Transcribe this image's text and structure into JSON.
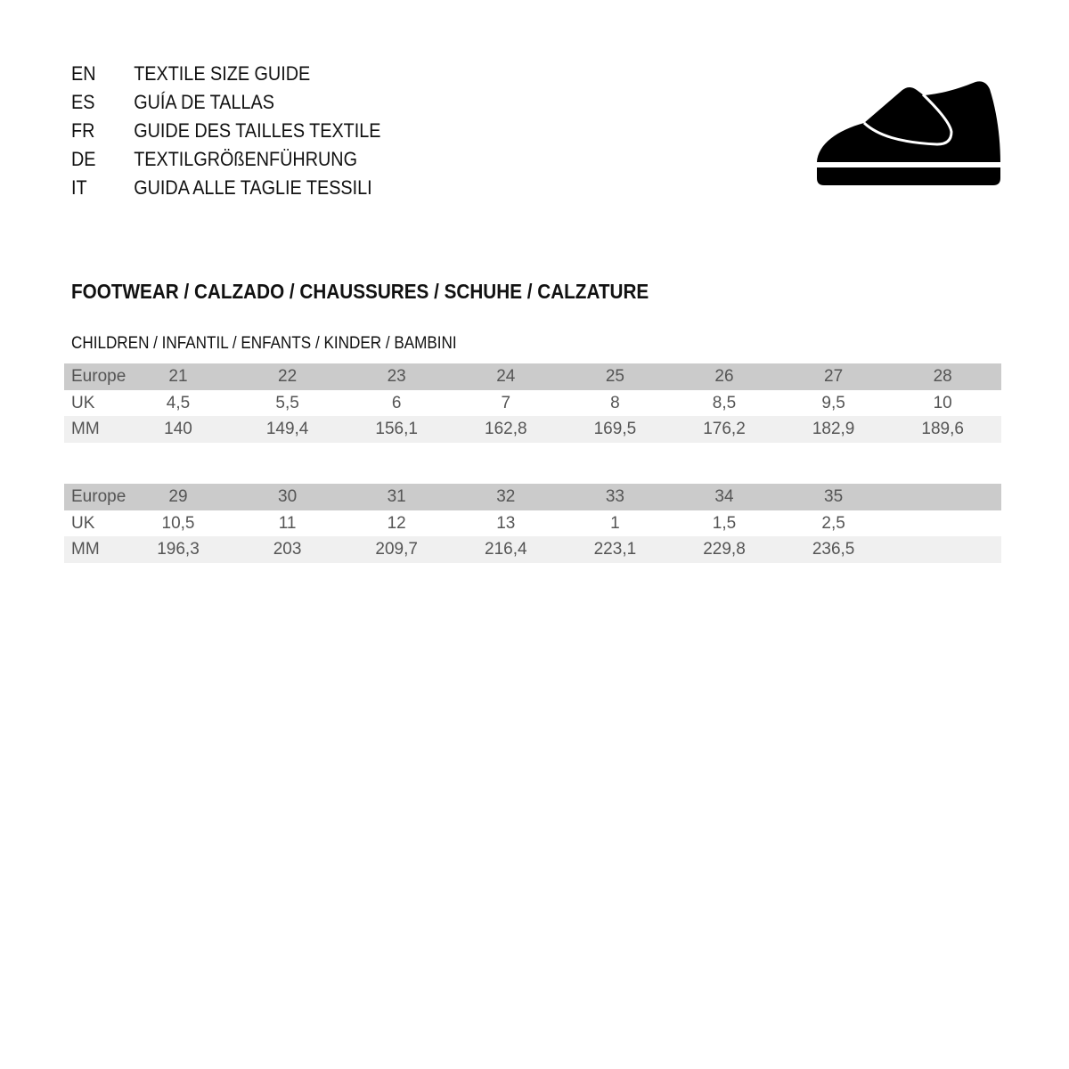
{
  "titles": [
    {
      "code": "EN",
      "text": "TEXTILE SIZE GUIDE"
    },
    {
      "code": "ES",
      "text": "GUÍA DE TALLAS"
    },
    {
      "code": "FR",
      "text": "GUIDE DES TAILLES TEXTILE"
    },
    {
      "code": "DE",
      "text": "TEXTILGRÖßENFÜHRUNG"
    },
    {
      "code": "IT",
      "text": "GUIDA ALLE TAGLIE TESSILI"
    }
  ],
  "icon": "shoe-icon",
  "section_title": "FOOTWEAR / CALZADO / CHAUSSURES / SCHUHE / CALZATURE",
  "subsection_title": "CHILDREN / INFANTIL / ENFANTS / KINDER / BAMBINI",
  "tables": [
    {
      "rows": [
        {
          "label": "Europe",
          "values": [
            "21",
            "22",
            "23",
            "24",
            "25",
            "26",
            "27",
            "28"
          ]
        },
        {
          "label": "UK",
          "values": [
            "4,5",
            "5,5",
            "6",
            "7",
            "8",
            "8,5",
            "9,5",
            "10"
          ]
        },
        {
          "label": "MM",
          "values": [
            "140",
            "149,4",
            "156,1",
            "162,8",
            "169,5",
            "176,2",
            "182,9",
            "189,6"
          ]
        }
      ]
    },
    {
      "rows": [
        {
          "label": "Europe",
          "values": [
            "29",
            "30",
            "31",
            "32",
            "33",
            "34",
            "35"
          ]
        },
        {
          "label": "UK",
          "values": [
            "10,5",
            "11",
            "12",
            "13",
            "1",
            "1,5",
            "2,5"
          ]
        },
        {
          "label": "MM",
          "values": [
            "196,3",
            "203",
            "209,7",
            "216,4",
            "223,1",
            "229,8",
            "236,5"
          ]
        }
      ]
    }
  ]
}
